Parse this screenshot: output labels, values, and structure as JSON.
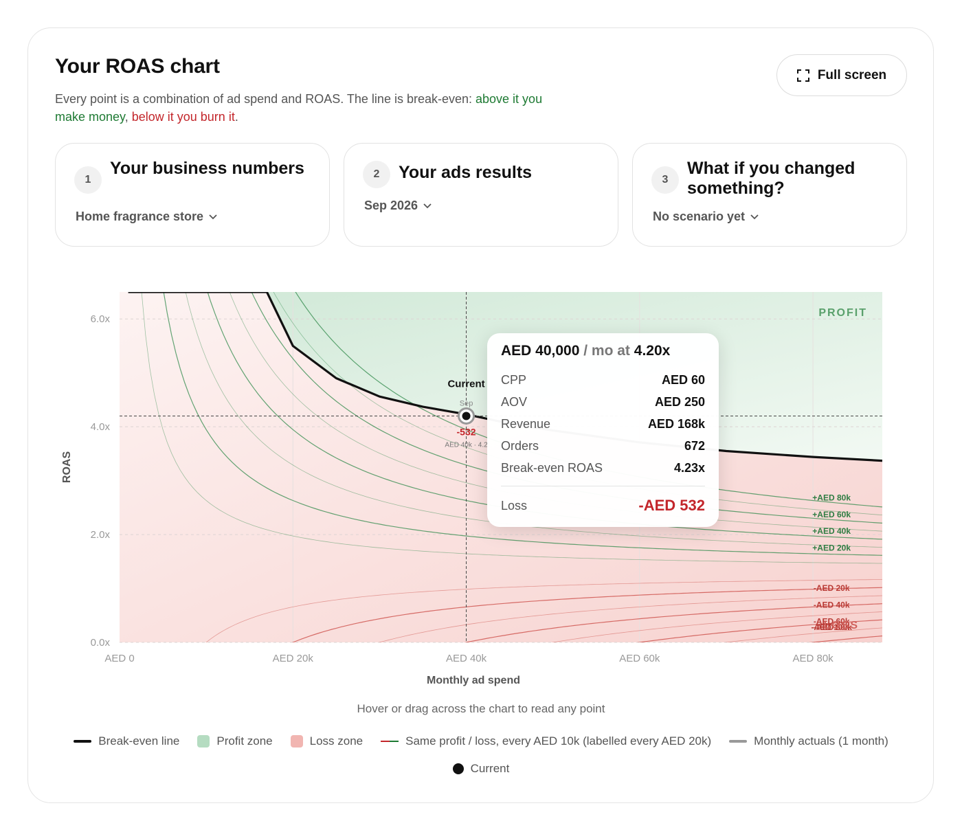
{
  "header": {
    "title": "Your ROAS chart",
    "subtitle_lead": "Every point is a combination of ad spend and ROAS. The line is break-even: ",
    "subtitle_above": "above it you make money",
    "subtitle_sep": ", ",
    "subtitle_below": "below it you burn it",
    "subtitle_end": ".",
    "fullscreen_label": "Full screen"
  },
  "steps": [
    {
      "num": "1",
      "title": "Your business numbers",
      "selected": "Home fragrance store"
    },
    {
      "num": "2",
      "title": "Your ads results",
      "selected": "Sep 2026"
    },
    {
      "num": "3",
      "title": "What if you changed something?",
      "selected": "No scenario yet"
    }
  ],
  "tooltip": {
    "spend": "AED 40,000",
    "per": " / mo at ",
    "roas": "4.20x",
    "rows": [
      {
        "label": "CPP",
        "value": "AED 60"
      },
      {
        "label": "AOV",
        "value": "AED 250"
      },
      {
        "label": "Revenue",
        "value": "AED 168k"
      },
      {
        "label": "Orders",
        "value": "672"
      },
      {
        "label": "Break-even ROAS",
        "value": "4.23x"
      }
    ],
    "loss_label": "Loss",
    "loss_value": "-AED 532"
  },
  "hint": "Hover or drag across the chart to read any point",
  "legend": {
    "breakeven": "Break-even line",
    "profit": "Profit zone",
    "loss": "Loss zone",
    "contours": "Same profit / loss, every AED 10k (labelled every AED 20k)",
    "actuals": "Monthly actuals (1 month)",
    "current": "Current"
  },
  "chart_data": {
    "type": "scatter",
    "title": "",
    "xlabel": "Monthly ad spend",
    "ylabel": "ROAS",
    "x_ticks": [
      "AED 0",
      "AED 20k",
      "AED 40k",
      "AED 60k",
      "AED 80k"
    ],
    "x_tick_values": [
      0,
      20000,
      40000,
      60000,
      80000
    ],
    "y_ticks": [
      "0.0x",
      "2.0x",
      "4.0x",
      "6.0x"
    ],
    "y_tick_values": [
      0,
      2,
      4,
      6
    ],
    "xlim": [
      0,
      88000
    ],
    "ylim": [
      0,
      6.5
    ],
    "grid": true,
    "aov": 250,
    "cpp": 60,
    "breakeven_line": {
      "name": "Break-even line",
      "x": [
        1000,
        17000,
        20000,
        25000,
        30000,
        35000,
        40000,
        45000,
        50000,
        60000,
        70000,
        80000,
        88000
      ],
      "y": [
        6.5,
        6.5,
        5.5,
        4.9,
        4.56,
        4.37,
        4.23,
        4.06,
        3.93,
        3.71,
        3.55,
        3.44,
        3.37
      ]
    },
    "contour_labels": {
      "profit": [
        "+AED 80k",
        "+AED 60k",
        "+AED 40k",
        "+AED 20k"
      ],
      "loss": [
        "-AED 20k",
        "-AED 40k",
        "-AED 60k",
        "-AED 80k",
        "-AED 100k"
      ]
    },
    "zone_labels": {
      "profit": "PROFIT",
      "loss": "LOSS"
    },
    "current_point": {
      "name": "Current",
      "month": "Sep",
      "x": 40000,
      "y": 4.2,
      "profit_label": "-532",
      "caption": "AED 40k · 4.2"
    }
  }
}
